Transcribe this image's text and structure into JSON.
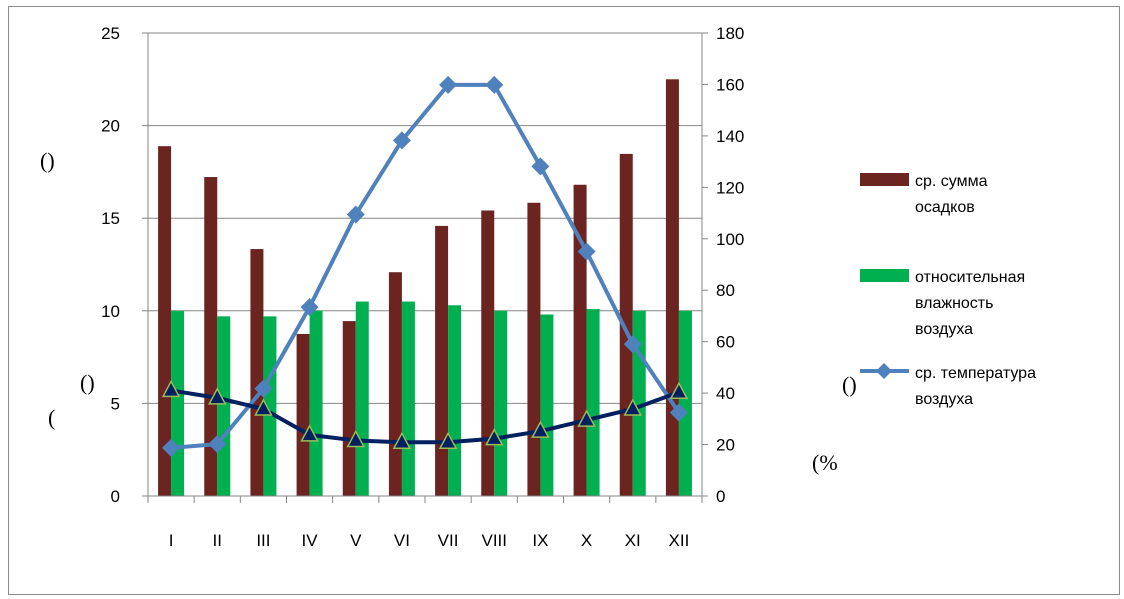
{
  "chart_data": {
    "type": "bar",
    "categories": [
      "I",
      "II",
      "III",
      "IV",
      "V",
      "VI",
      "VII",
      "VIII",
      "IX",
      "X",
      "XI",
      "XII"
    ],
    "left_axis": {
      "ylim": [
        0,
        25
      ],
      "ticks": [
        "0",
        "5",
        "10",
        "15",
        "20",
        "25"
      ]
    },
    "right_axis": {
      "ylim": [
        0,
        180
      ],
      "ticks": [
        "0",
        "20",
        "40",
        "60",
        "80",
        "100",
        "120",
        "140",
        "160",
        "180"
      ]
    },
    "series": [
      {
        "name": "ср. сумма осадков",
        "kind": "bar",
        "axis": "right",
        "color": "#6b2420",
        "values": [
          136,
          124,
          96,
          63,
          68,
          87,
          105,
          111,
          114,
          121,
          133,
          162
        ]
      },
      {
        "name": "относительная влажность воздуха",
        "kind": "bar",
        "axis": "left",
        "color": "#00b050",
        "values": [
          10.0,
          9.7,
          9.7,
          10.0,
          10.5,
          10.5,
          10.3,
          10.0,
          9.8,
          10.1,
          10.0,
          10.0
        ]
      },
      {
        "name": "ср. температура воздуха",
        "kind": "line",
        "axis": "left",
        "color": "#4f81bd",
        "marker": "diamond",
        "values": [
          2.6,
          2.8,
          5.8,
          10.2,
          15.2,
          19.2,
          22.2,
          22.2,
          17.8,
          13.2,
          8.2,
          4.5
        ]
      },
      {
        "name": "",
        "kind": "line",
        "axis": "left",
        "color": "#002060",
        "marker": "triangle",
        "values": [
          5.7,
          5.3,
          4.7,
          3.3,
          3.0,
          2.9,
          2.9,
          3.1,
          3.5,
          4.1,
          4.7,
          5.6
        ]
      }
    ],
    "legend": {
      "position": "right"
    },
    "grid": "horizontal",
    "stray_marks": [
      "()",
      "(",
      "()",
      "()",
      "(%"
    ]
  }
}
